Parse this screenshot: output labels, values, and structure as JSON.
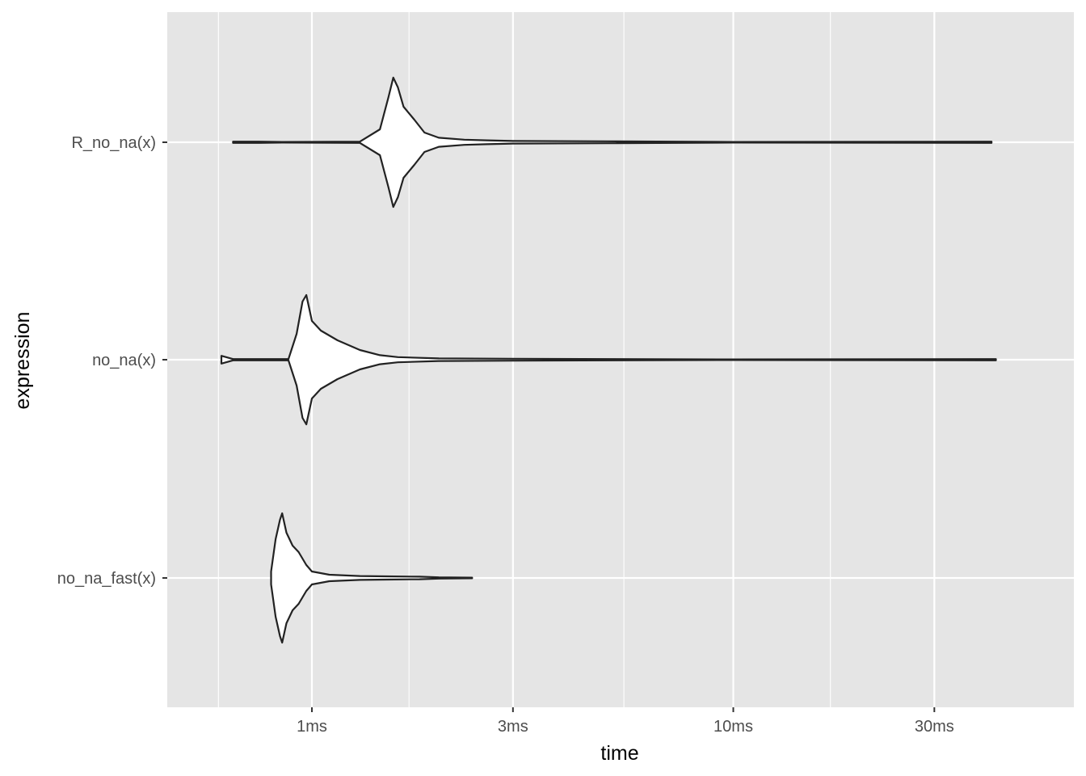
{
  "chart_data": {
    "type": "violin",
    "orientation": "horizontal",
    "xlabel": "time",
    "ylabel": "expression",
    "x_scale": "log10",
    "x_unit": "ms",
    "xlim": [
      0.6,
      45
    ],
    "x_ticks": [
      {
        "value": 1,
        "label": "1ms"
      },
      {
        "value": 3,
        "label": "3ms"
      },
      {
        "value": 10,
        "label": "10ms"
      },
      {
        "value": 30,
        "label": "30ms"
      }
    ],
    "x_minor_ticks": [
      0.6,
      1.7,
      5.5,
      17
    ],
    "categories": [
      "R_no_na(x)",
      "no_na(x)",
      "no_na_fast(x)"
    ],
    "series": [
      {
        "category": "R_no_na(x)",
        "min": 0.65,
        "max": 41,
        "profile": [
          [
            0.65,
            0.01
          ],
          [
            0.75,
            0.01
          ],
          [
            0.85,
            0.005
          ],
          [
            1.3,
            0.01
          ],
          [
            1.45,
            0.2
          ],
          [
            1.52,
            0.7
          ],
          [
            1.56,
            1.0
          ],
          [
            1.6,
            0.85
          ],
          [
            1.65,
            0.55
          ],
          [
            1.75,
            0.35
          ],
          [
            1.85,
            0.15
          ],
          [
            2.0,
            0.07
          ],
          [
            2.3,
            0.04
          ],
          [
            2.6,
            0.03
          ],
          [
            3.0,
            0.02
          ],
          [
            5.0,
            0.015
          ],
          [
            10,
            0.005
          ],
          [
            41,
            0.01
          ]
        ]
      },
      {
        "category": "no_na(x)",
        "min": 0.61,
        "max": 42,
        "profile": [
          [
            0.61,
            0.06
          ],
          [
            0.65,
            0.01
          ],
          [
            0.7,
            0.01
          ],
          [
            0.88,
            0.01
          ],
          [
            0.92,
            0.4
          ],
          [
            0.95,
            0.9
          ],
          [
            0.97,
            1.0
          ],
          [
            1.0,
            0.6
          ],
          [
            1.05,
            0.45
          ],
          [
            1.15,
            0.3
          ],
          [
            1.3,
            0.15
          ],
          [
            1.45,
            0.07
          ],
          [
            1.6,
            0.04
          ],
          [
            2.0,
            0.02
          ],
          [
            3.0,
            0.015
          ],
          [
            10,
            0.005
          ],
          [
            42,
            0.01
          ]
        ]
      },
      {
        "category": "no_na_fast(x)",
        "min": 0.8,
        "max": 2.4,
        "profile": [
          [
            0.8,
            0.1
          ],
          [
            0.82,
            0.6
          ],
          [
            0.84,
            0.9
          ],
          [
            0.85,
            1.0
          ],
          [
            0.87,
            0.7
          ],
          [
            0.9,
            0.5
          ],
          [
            0.93,
            0.4
          ],
          [
            0.97,
            0.2
          ],
          [
            1.0,
            0.1
          ],
          [
            1.1,
            0.05
          ],
          [
            1.3,
            0.03
          ],
          [
            1.5,
            0.025
          ],
          [
            1.8,
            0.02
          ],
          [
            2.0,
            0.01
          ],
          [
            2.4,
            0.005
          ]
        ]
      }
    ],
    "colors": {
      "panel_background": "#e5e5e5",
      "grid": "#ffffff",
      "violin_fill": "#ffffff",
      "violin_outline": "#222222"
    },
    "grid": true,
    "legend": "none"
  }
}
